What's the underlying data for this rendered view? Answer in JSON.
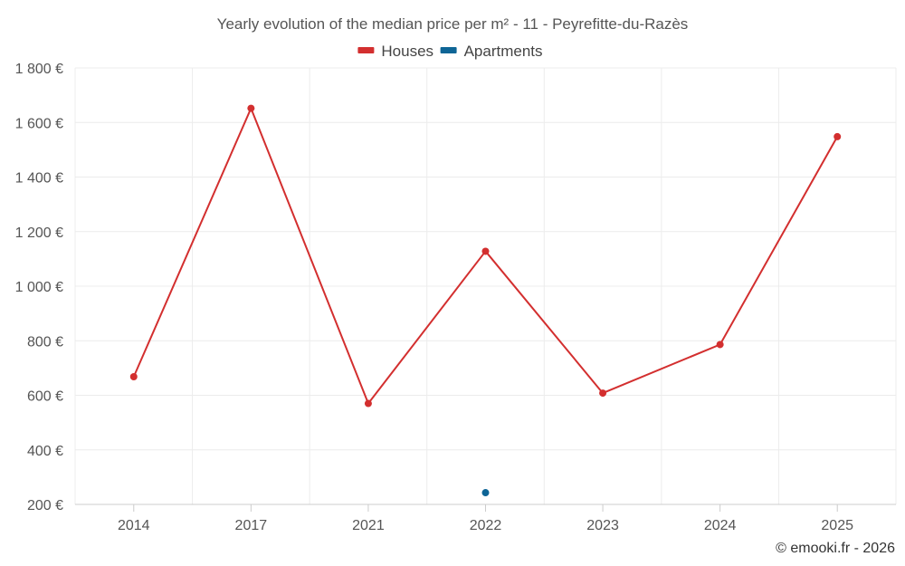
{
  "chart_data": {
    "type": "line",
    "title": "Yearly evolution of the median price per m² - 11 - Peyrefitte-du-Razès",
    "categories": [
      "2014",
      "2017",
      "2021",
      "2022",
      "2023",
      "2024",
      "2025"
    ],
    "series": [
      {
        "name": "Houses",
        "color": "#d32f2f",
        "values": [
          668,
          1652,
          570,
          1128,
          608,
          786,
          1548
        ]
      },
      {
        "name": "Apartments",
        "color": "#0e6596",
        "values": [
          null,
          null,
          null,
          243,
          null,
          null,
          null
        ]
      }
    ],
    "ylim": [
      200,
      1800
    ],
    "yticks": [
      200,
      400,
      600,
      800,
      1000,
      1200,
      1400,
      1600,
      1800
    ],
    "ytick_labels": [
      "200 €",
      "400 €",
      "600 €",
      "800 €",
      "1 000 €",
      "1 200 €",
      "1 400 €",
      "1 600 €",
      "1 800 €"
    ],
    "xlabel": "",
    "ylabel": "",
    "legend_position": "top-center",
    "grid": true,
    "credit": "© emooki.fr - 2026"
  }
}
